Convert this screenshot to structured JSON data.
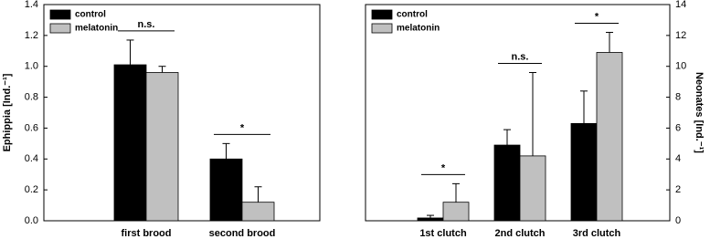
{
  "chart_data": [
    {
      "type": "bar",
      "ylabel": "Ephippia [Ind.⁻¹]",
      "y_axis_side": "left",
      "legend": "upper left",
      "categories": [
        "first brood",
        "second brood"
      ],
      "series": [
        {
          "name": "control",
          "color": "#000000",
          "values": [
            1.01,
            0.4
          ],
          "errors": [
            0.16,
            0.1
          ]
        },
        {
          "name": "melatonin",
          "color": "#c0c0c0",
          "values": [
            0.96,
            0.12
          ],
          "errors": [
            0.04,
            0.1
          ]
        }
      ],
      "significance": [
        "n.s.",
        "*"
      ],
      "ylim": [
        0,
        1.4
      ],
      "yticks": [
        {
          "value": 0,
          "label": "0.0"
        },
        0.2,
        0.4,
        0.6,
        0.8,
        {
          "value": 1,
          "label": "1.0"
        },
        1.2,
        1.4
      ]
    },
    {
      "type": "bar",
      "ylabel": "Neonates [Ind.⁻¹]",
      "y_axis_side": "right",
      "legend": "upper left",
      "categories": [
        "1st clutch",
        "2nd clutch",
        "3rd clutch"
      ],
      "series": [
        {
          "name": "control",
          "color": "#000000",
          "values": [
            0.18,
            4.9,
            6.3
          ],
          "errors": [
            0.17,
            1.0,
            2.1
          ]
        },
        {
          "name": "melatonin",
          "color": "#c0c0c0",
          "values": [
            1.2,
            4.2,
            10.9
          ],
          "errors": [
            1.2,
            5.4,
            1.3
          ]
        }
      ],
      "significance": [
        "*",
        "n.s.",
        "*"
      ],
      "ylim": [
        0,
        14
      ],
      "yticks": [
        0,
        2,
        4,
        6,
        8,
        10,
        12,
        14
      ]
    }
  ]
}
